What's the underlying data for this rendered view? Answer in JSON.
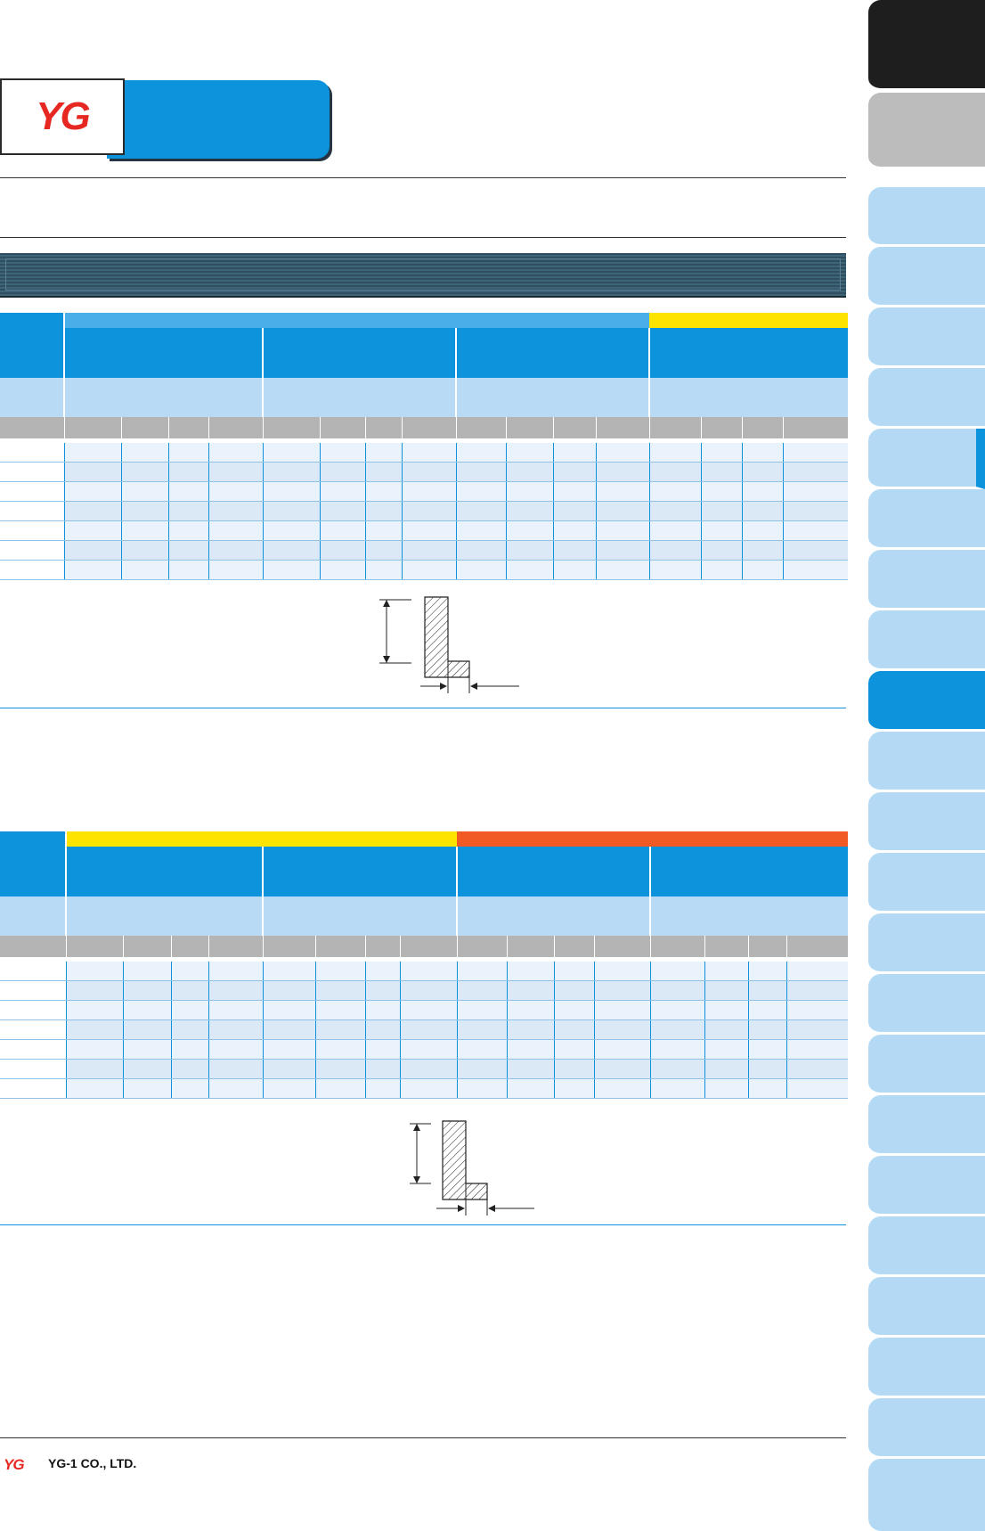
{
  "footer": {
    "logo": "YG",
    "company": "YG-1 CO., LTD."
  },
  "header": {
    "logo": "YG"
  },
  "colors": {
    "accent": "#0c93dc",
    "light_blue": "#b3d9f4",
    "yellow": "#fde400",
    "orange": "#f15a24",
    "logo_red": "#e62722"
  }
}
